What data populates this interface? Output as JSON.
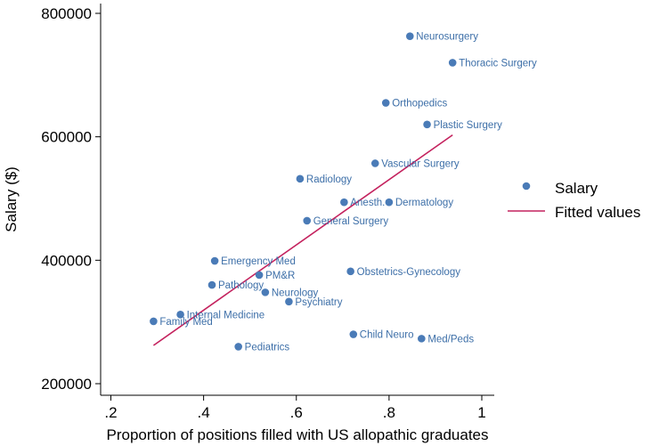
{
  "chart_data": {
    "type": "scatter",
    "title": "",
    "xlabel": "Proportion of positions filled with US allopathic graduates",
    "ylabel": "Salary ($)",
    "xlim": [
      0.18,
      1.02
    ],
    "ylim": [
      185000,
      820000
    ],
    "xticks": [
      0.2,
      0.4,
      0.6,
      0.8,
      1.0
    ],
    "xtick_labels": [
      ".2",
      ".4",
      ".6",
      ".8",
      "1"
    ],
    "yticks": [
      200000,
      400000,
      600000,
      800000
    ],
    "ytick_labels": [
      "200000",
      "400000",
      "600000",
      "800000"
    ],
    "grid": false,
    "legend_position": "right",
    "series": [
      {
        "name": "Salary",
        "type": "scatter",
        "color": "#4a7bb7",
        "points": [
          {
            "label": "Neurosurgery",
            "x": 0.845,
            "y": 763000
          },
          {
            "label": "Thoracic Surgery",
            "x": 0.937,
            "y": 720000
          },
          {
            "label": "Orthopedics",
            "x": 0.793,
            "y": 655000
          },
          {
            "label": "Plastic Surgery",
            "x": 0.882,
            "y": 620000
          },
          {
            "label": "Vascular Surgery",
            "x": 0.77,
            "y": 557000
          },
          {
            "label": "Radiology",
            "x": 0.608,
            "y": 532000
          },
          {
            "label": "Anesth.",
            "x": 0.703,
            "y": 494000
          },
          {
            "label": "Dermatology",
            "x": 0.8,
            "y": 494000
          },
          {
            "label": "General Surgery",
            "x": 0.623,
            "y": 464000
          },
          {
            "label": "Emergency Med",
            "x": 0.424,
            "y": 399000
          },
          {
            "label": "Obstetrics-Gynecology",
            "x": 0.717,
            "y": 382000
          },
          {
            "label": "PM&R",
            "x": 0.52,
            "y": 376000
          },
          {
            "label": "Pathology",
            "x": 0.418,
            "y": 360000
          },
          {
            "label": "Neurology",
            "x": 0.533,
            "y": 348000
          },
          {
            "label": "Psychiatry",
            "x": 0.584,
            "y": 333000
          },
          {
            "label": "Internal Medicine",
            "x": 0.35,
            "y": 312000
          },
          {
            "label": "Family Med",
            "x": 0.292,
            "y": 301000
          },
          {
            "label": "Child Neuro",
            "x": 0.723,
            "y": 280000
          },
          {
            "label": "Med/Peds",
            "x": 0.87,
            "y": 273000
          },
          {
            "label": "Pediatrics",
            "x": 0.475,
            "y": 260000
          }
        ]
      },
      {
        "name": "Fitted values",
        "type": "line",
        "color": "#c4225e",
        "points": [
          {
            "x": 0.292,
            "y": 262000
          },
          {
            "x": 0.937,
            "y": 603000
          }
        ]
      }
    ]
  }
}
